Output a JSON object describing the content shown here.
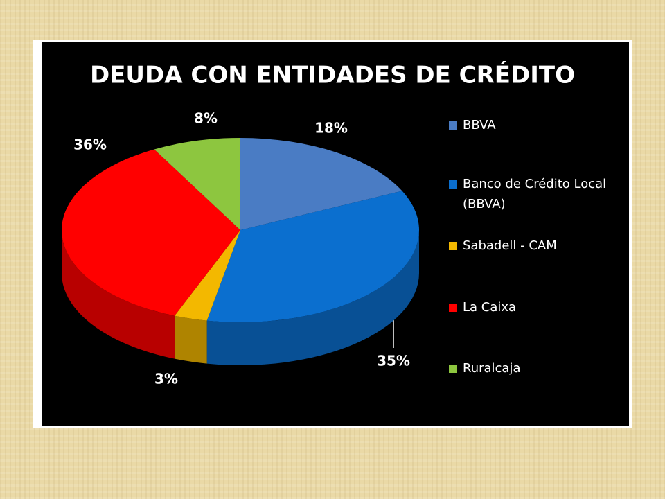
{
  "chart_data": {
    "type": "pie3d",
    "title": "DEUDA CON ENTIDADES DE CRÉDITO",
    "categories": [
      "BBVA",
      "Banco de Crédito Local (BBVA)",
      "Sabadell - CAM",
      "La Caixa",
      "Ruralcaja"
    ],
    "values": [
      18,
      35,
      3,
      36,
      8
    ],
    "value_labels": [
      "18%",
      "35%",
      "3%",
      "36%",
      "8%"
    ],
    "colors": [
      "#4a7cc4",
      "#0b6fcf",
      "#f3b800",
      "#ff0000",
      "#8dc63f"
    ],
    "legend": "right"
  }
}
